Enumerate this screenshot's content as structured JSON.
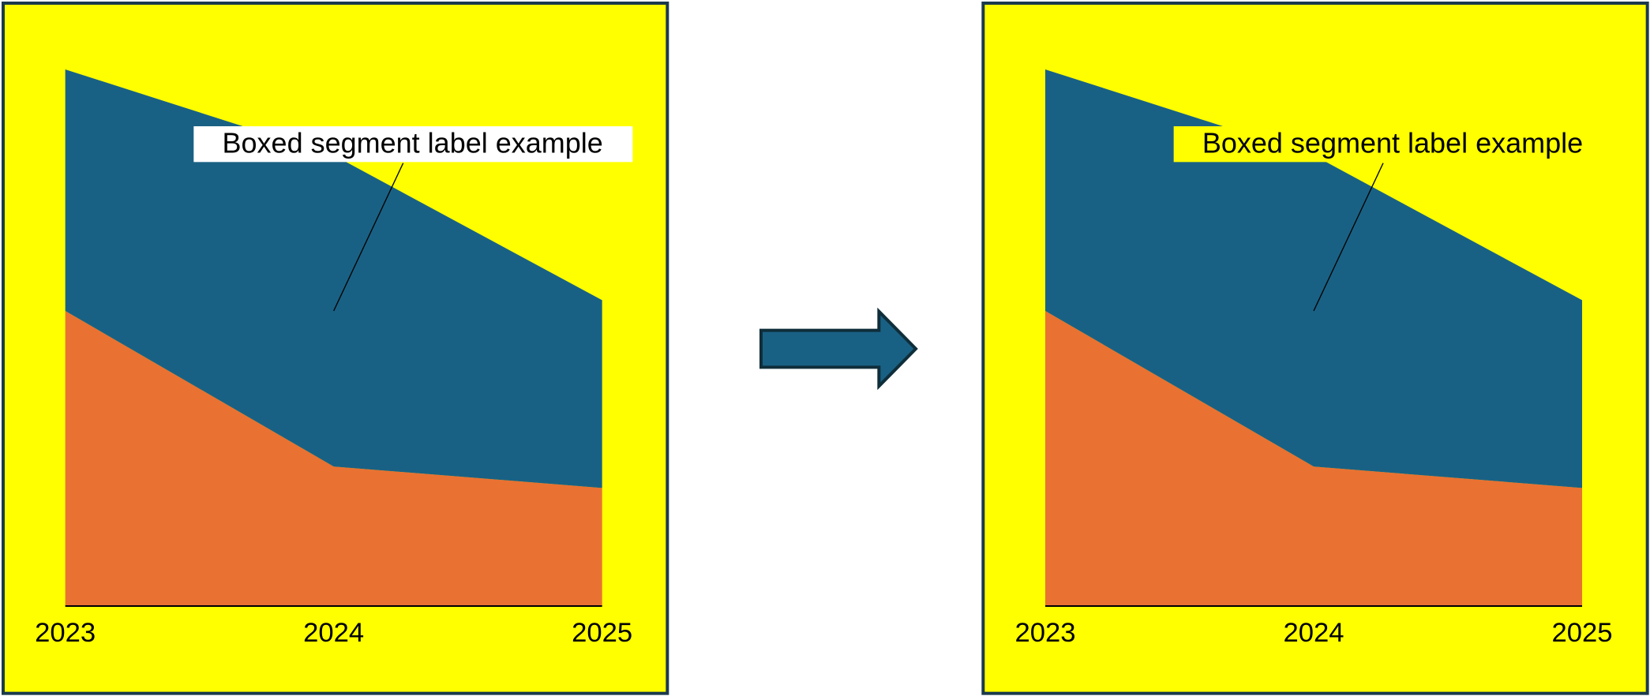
{
  "chart_data": [
    {
      "type": "stacked-area",
      "categories": [
        "2023",
        "2024",
        "2025"
      ],
      "series": [
        {
          "color": "#e97132",
          "values": [
            55,
            26,
            22
          ]
        },
        {
          "color": "#196184",
          "values": [
            45,
            58,
            35
          ]
        }
      ],
      "ylim": [
        0,
        100
      ],
      "background": "#ffff00",
      "annotation": {
        "text": "Boxed segment label example",
        "box_color": "#ffffff"
      }
    },
    {
      "type": "stacked-area",
      "categories": [
        "2023",
        "2024",
        "2025"
      ],
      "series": [
        {
          "color": "#e97132",
          "values": [
            55,
            26,
            22
          ]
        },
        {
          "color": "#196184",
          "values": [
            45,
            58,
            35
          ]
        }
      ],
      "ylim": [
        0,
        100
      ],
      "background": "#ffff00",
      "annotation": {
        "text": "Boxed segment label example",
        "box_color": "#ffff00"
      }
    }
  ]
}
